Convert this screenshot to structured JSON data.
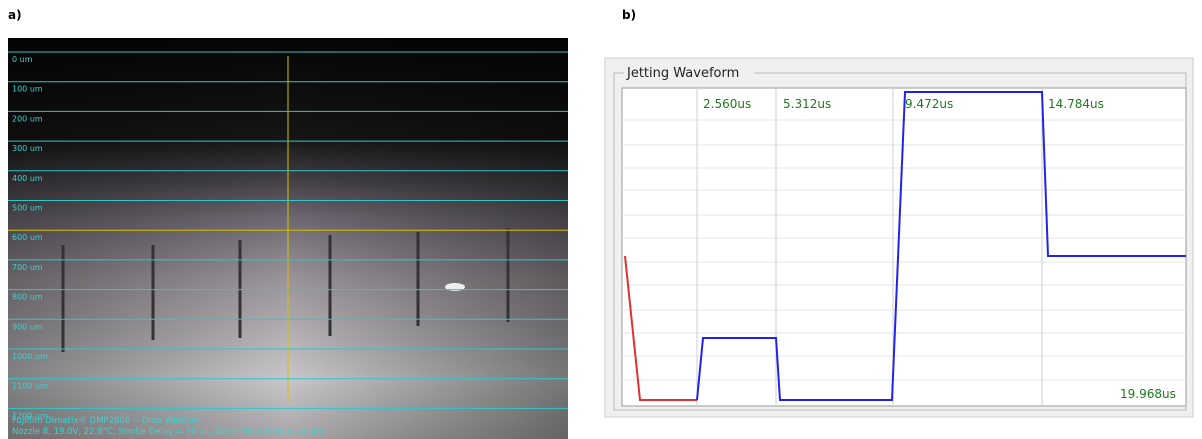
{
  "panel_a": {
    "label": "a)",
    "scale_labels": [
      "0 um",
      "100 um",
      "200 um",
      "300 um",
      "400 um",
      "500 um",
      "600 um",
      "700 um",
      "800 um",
      "900 um",
      "1000 um",
      "1100 um",
      "1200 um"
    ],
    "footer": [
      "Fujifilm Dimatix® DMP2800 -- Drop Watcher",
      "Nozzle 8, 19.0V, 22.8°C, Strobe Delay = 30 us, Wave File = Low-Viscosity"
    ]
  },
  "panel_b": {
    "label": "b)",
    "title": "Jetting Waveform",
    "time_labels": [
      "2.560us",
      "5.312us",
      "9.472us",
      "14.784us"
    ],
    "end_label": "19.968us"
  }
}
